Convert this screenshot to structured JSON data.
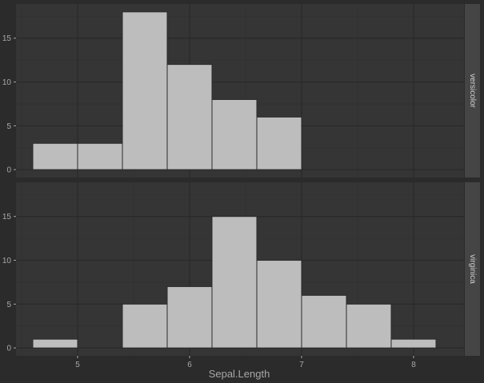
{
  "chart_data": {
    "type": "bar",
    "subtype": "faceted-histogram",
    "xlabel": "Sepal.Length",
    "ylabel": "",
    "xlim": [
      4.45,
      8.45
    ],
    "x_ticks": [
      5,
      6,
      7,
      8
    ],
    "y_ticks": [
      0,
      5,
      10,
      15
    ],
    "grid": true,
    "colors": {
      "background": "#2b2b2b",
      "panel": "#353535",
      "grid_major": "#292929",
      "grid_minor": "#313131",
      "strip": "#454545",
      "bar_fill": "#bdbdbd",
      "bar_outline": "#2b2b2b",
      "text": "#a8a8a8"
    },
    "panels": [
      {
        "facet": "versicolor",
        "ylim": [
          -0.9,
          18.9
        ],
        "bins": [
          {
            "x0": 4.6,
            "x1": 5.0,
            "count": 3
          },
          {
            "x0": 5.0,
            "x1": 5.4,
            "count": 3
          },
          {
            "x0": 5.4,
            "x1": 5.8,
            "count": 18
          },
          {
            "x0": 5.8,
            "x1": 6.2,
            "count": 12
          },
          {
            "x0": 6.2,
            "x1": 6.6,
            "count": 8
          },
          {
            "x0": 6.6,
            "x1": 7.0,
            "count": 6
          }
        ]
      },
      {
        "facet": "virginica",
        "ylim": [
          -0.9,
          18.9
        ],
        "bins": [
          {
            "x0": 4.6,
            "x1": 5.0,
            "count": 1
          },
          {
            "x0": 5.4,
            "x1": 5.8,
            "count": 5
          },
          {
            "x0": 5.8,
            "x1": 6.2,
            "count": 7
          },
          {
            "x0": 6.2,
            "x1": 6.6,
            "count": 15
          },
          {
            "x0": 6.6,
            "x1": 7.0,
            "count": 10
          },
          {
            "x0": 7.0,
            "x1": 7.4,
            "count": 6
          },
          {
            "x0": 7.4,
            "x1": 7.8,
            "count": 5
          },
          {
            "x0": 7.8,
            "x1": 8.2,
            "count": 1
          }
        ]
      }
    ]
  }
}
